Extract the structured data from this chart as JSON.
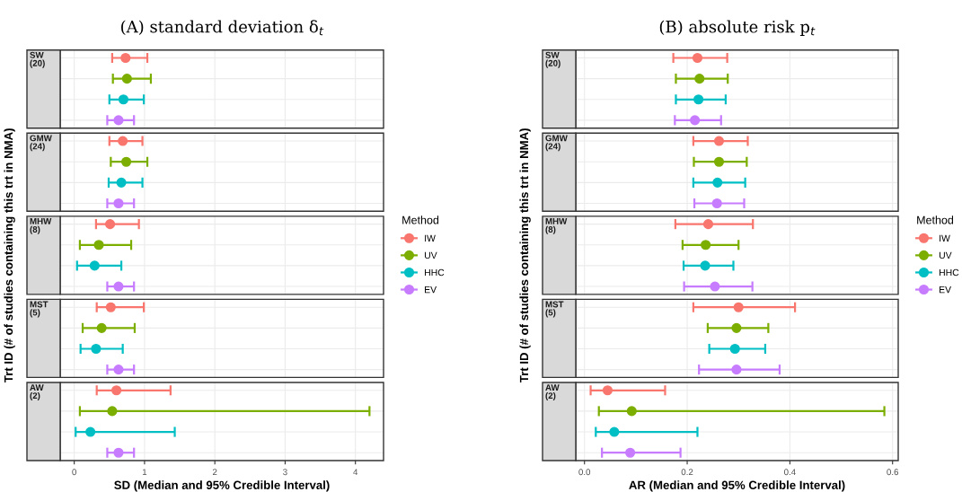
{
  "chart_data": [
    {
      "type": "scatter",
      "orientation": "horizontal",
      "title": "(A) standard deviation δ$_{t}$",
      "xlabel": "SD (Median and 95% Credible Interval)",
      "ylabel": "Trt ID (# of studies containing this trt in NMA)",
      "legend": "right",
      "legend_title": "Method",
      "categories": [
        "SW\n(20)",
        null,
        null,
        null,
        "GMW\n(24)",
        null,
        null,
        null,
        "MHW\n(8)",
        null,
        null,
        null,
        "MST\n(5)",
        null,
        null,
        null,
        "AW\n(2)",
        null,
        null,
        null
      ],
      "xlim": [
        -0.2,
        4.4
      ],
      "xticks": [
        0,
        1,
        2,
        3,
        4
      ],
      "grid": true,
      "marker": "circle",
      "series": [
        {
          "name": "IW",
          "color": "#f8766d",
          "values": [
            0.73,
            null,
            null,
            null,
            0.69,
            null,
            null,
            null,
            0.51,
            null,
            null,
            null,
            0.52,
            null,
            null,
            null,
            0.6,
            null,
            null,
            null
          ],
          "errors": [
            [
              0.54,
              1.04
            ],
            null,
            null,
            null,
            [
              0.5,
              0.97
            ],
            null,
            null,
            null,
            [
              0.31,
              0.92
            ],
            null,
            null,
            null,
            [
              0.32,
              0.99
            ],
            null,
            null,
            null,
            [
              0.32,
              1.37
            ],
            null,
            null,
            null
          ]
        },
        {
          "name": "UV",
          "color": "#7cae00",
          "values": [
            null,
            0.75,
            null,
            null,
            null,
            0.74,
            null,
            null,
            null,
            0.35,
            null,
            null,
            null,
            0.39,
            null,
            null,
            null,
            0.54,
            null,
            null
          ],
          "errors": [
            null,
            [
              0.55,
              1.09
            ],
            null,
            null,
            null,
            [
              0.52,
              1.04
            ],
            null,
            null,
            null,
            [
              0.08,
              0.81
            ],
            null,
            null,
            null,
            [
              0.12,
              0.86
            ],
            null,
            null,
            null,
            [
              0.08,
              4.2
            ],
            null,
            null
          ]
        },
        {
          "name": "HHC",
          "color": "#00bfc4",
          "values": [
            null,
            null,
            0.7,
            null,
            null,
            null,
            0.67,
            null,
            null,
            null,
            0.29,
            null,
            null,
            null,
            0.31,
            null,
            null,
            null,
            0.23,
            null
          ],
          "errors": [
            null,
            null,
            [
              0.5,
              0.99
            ],
            null,
            null,
            null,
            [
              0.49,
              0.97
            ],
            null,
            null,
            null,
            [
              0.04,
              0.67
            ],
            null,
            null,
            null,
            [
              0.09,
              0.69
            ],
            null,
            null,
            null,
            [
              0.02,
              1.43
            ],
            null
          ]
        },
        {
          "name": "EV",
          "color": "#c77cff",
          "values": [
            null,
            null,
            null,
            0.63,
            null,
            null,
            null,
            0.63,
            null,
            null,
            null,
            0.63,
            null,
            null,
            null,
            0.63,
            null,
            null,
            null,
            0.63
          ],
          "errors": [
            null,
            null,
            null,
            [
              0.47,
              0.85
            ],
            null,
            null,
            null,
            [
              0.47,
              0.85
            ],
            null,
            null,
            null,
            [
              0.47,
              0.85
            ],
            null,
            null,
            null,
            [
              0.47,
              0.85
            ],
            null,
            null,
            null,
            [
              0.47,
              0.85
            ]
          ]
        }
      ]
    },
    {
      "type": "scatter",
      "orientation": "horizontal",
      "title": "(B) absolute risk p$_{t}$",
      "xlabel": "AR (Median and 95% Credible Interval)",
      "ylabel": "Trt ID (# of studies containing this trt in NMA)",
      "legend": "right",
      "legend_title": "Method",
      "categories": [
        "SW\n(20)",
        null,
        null,
        null,
        "GMW\n(24)",
        null,
        null,
        null,
        "MHW\n(8)",
        null,
        null,
        null,
        "MST\n(5)",
        null,
        null,
        null,
        "AW\n(2)",
        null,
        null,
        null
      ],
      "xlim": [
        -0.017,
        0.611
      ],
      "xticks": [
        {
          "value": 0,
          "label": "0.0"
        },
        0.2,
        0.4,
        0.6
      ],
      "grid": true,
      "marker": "circle",
      "series": [
        {
          "name": "IW",
          "color": "#f8766d",
          "values": [
            0.22,
            null,
            null,
            null,
            0.262,
            null,
            null,
            null,
            0.241,
            null,
            null,
            null,
            0.3,
            null,
            null,
            null,
            0.045,
            null,
            null,
            null
          ],
          "errors": [
            [
              0.173,
              0.278
            ],
            null,
            null,
            null,
            [
              0.212,
              0.318
            ],
            null,
            null,
            null,
            [
              0.177,
              0.328
            ],
            null,
            null,
            null,
            [
              0.212,
              0.41
            ],
            null,
            null,
            null,
            [
              0.012,
              0.157
            ],
            null,
            null,
            null
          ]
        },
        {
          "name": "UV",
          "color": "#7cae00",
          "values": [
            null,
            0.224,
            null,
            null,
            null,
            0.262,
            null,
            null,
            null,
            0.236,
            null,
            null,
            null,
            0.296,
            null,
            null,
            null,
            0.092,
            null,
            null
          ],
          "errors": [
            null,
            [
              0.178,
              0.279
            ],
            null,
            null,
            null,
            [
              0.213,
              0.316
            ],
            null,
            null,
            null,
            [
              0.191,
              0.3
            ],
            null,
            null,
            null,
            [
              0.24,
              0.358
            ],
            null,
            null,
            null,
            [
              0.028,
              0.584
            ],
            null,
            null
          ]
        },
        {
          "name": "HHC",
          "color": "#00bfc4",
          "values": [
            null,
            null,
            0.222,
            null,
            null,
            null,
            0.259,
            null,
            null,
            null,
            0.235,
            null,
            null,
            null,
            0.293,
            null,
            null,
            null,
            0.058,
            null
          ],
          "errors": [
            null,
            null,
            [
              0.178,
              0.275
            ],
            null,
            null,
            null,
            [
              0.212,
              0.313
            ],
            null,
            null,
            null,
            [
              0.193,
              0.29
            ],
            null,
            null,
            null,
            [
              0.243,
              0.352
            ],
            null,
            null,
            null,
            [
              0.022,
              0.22
            ],
            null
          ]
        },
        {
          "name": "EV",
          "color": "#c77cff",
          "values": [
            null,
            null,
            null,
            0.215,
            null,
            null,
            null,
            0.258,
            null,
            null,
            null,
            0.254,
            null,
            null,
            null,
            0.296,
            null,
            null,
            null,
            0.089
          ],
          "errors": [
            null,
            null,
            null,
            [
              0.176,
              0.266
            ],
            null,
            null,
            null,
            [
              0.214,
              0.311
            ],
            null,
            null,
            null,
            [
              0.194,
              0.327
            ],
            null,
            null,
            null,
            [
              0.223,
              0.38
            ],
            null,
            null,
            null,
            [
              0.034,
              0.187
            ]
          ]
        }
      ]
    }
  ]
}
